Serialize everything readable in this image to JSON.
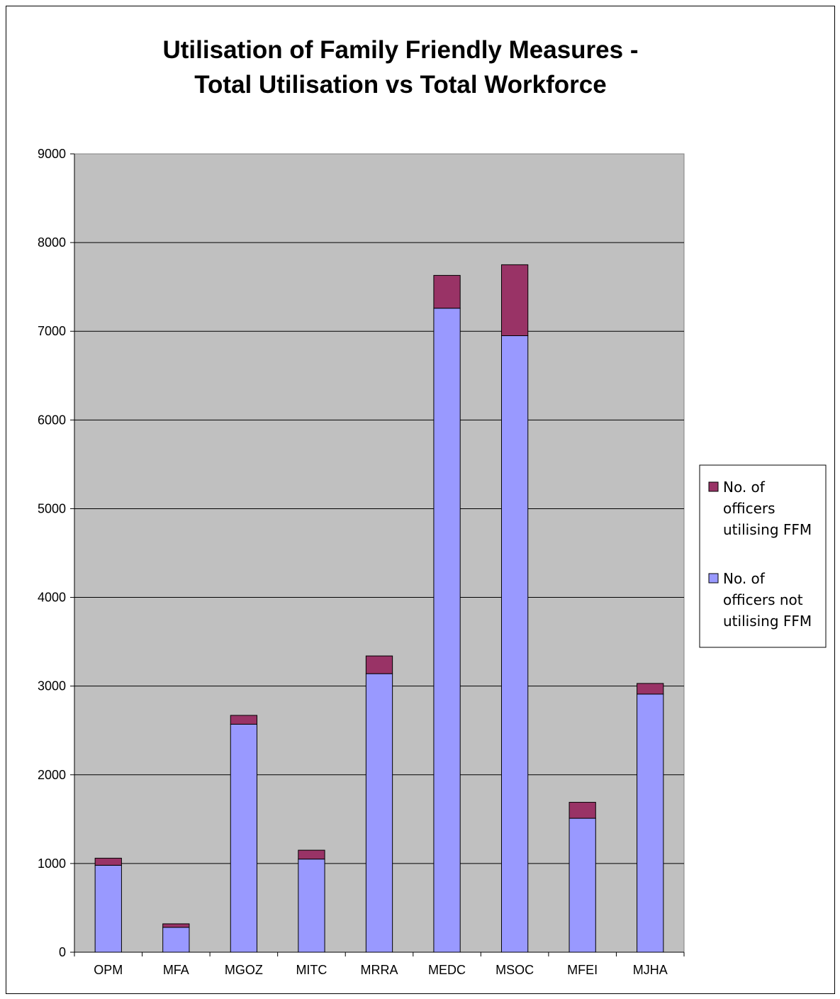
{
  "chart_data": {
    "type": "bar",
    "stacked": true,
    "title": [
      "Utilisation of Family Friendly Measures -",
      "Total Utilisation vs Total Workforce"
    ],
    "categories": [
      "OPM",
      "MFA",
      "MGOZ",
      "MITC",
      "MRRA",
      "MEDC",
      "MSOC",
      "MFEI",
      "MJHA"
    ],
    "series": [
      {
        "name": "No. of officers not utilising FFM",
        "legend_lines": [
          "No. of",
          "officers not",
          "utilising FFM"
        ],
        "color": "#9999FF",
        "values": [
          980,
          280,
          2570,
          1050,
          3140,
          7260,
          6950,
          1510,
          2910
        ]
      },
      {
        "name": "No. of officers utilising FFM",
        "legend_lines": [
          "No. of",
          "officers",
          "utilising FFM"
        ],
        "color": "#993366",
        "values": [
          80,
          40,
          100,
          100,
          200,
          370,
          800,
          180,
          120
        ]
      }
    ],
    "ylim": [
      0,
      9000
    ],
    "yticks": [
      0,
      1000,
      2000,
      3000,
      4000,
      5000,
      6000,
      7000,
      8000,
      9000
    ],
    "plot_background": "#C0C0C0",
    "grid": true,
    "legend": "right"
  }
}
